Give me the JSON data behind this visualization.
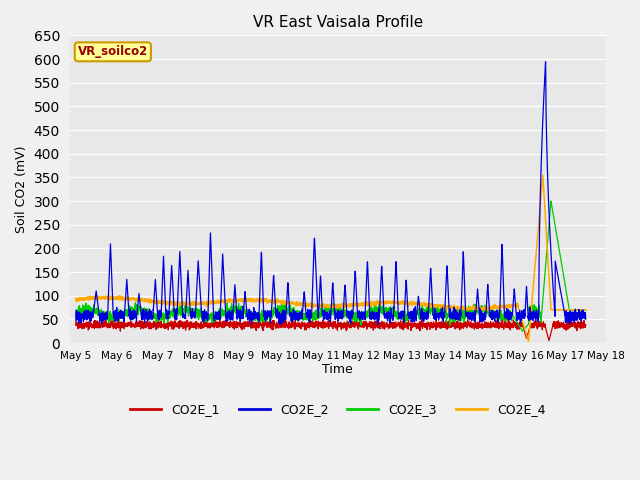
{
  "title": "VR East Vaisala Profile",
  "ylabel": "Soil CO2 (mV)",
  "xlabel": "Time",
  "annotation": "VR_soilco2",
  "ylim": [
    0,
    650
  ],
  "yticks": [
    0,
    50,
    100,
    150,
    200,
    250,
    300,
    350,
    400,
    450,
    500,
    550,
    600,
    650
  ],
  "xlim_days": [
    4.85,
    17.7
  ],
  "xtick_labels": [
    "May 5",
    "May 6",
    "May 7",
    "May 8",
    "May 9",
    "May 10",
    "May 11",
    "May 12",
    "May 13",
    "May 14",
    "May 15",
    "May 16",
    "May 17",
    "May 18"
  ],
  "xtick_positions": [
    5,
    6,
    7,
    8,
    9,
    10,
    11,
    12,
    13,
    14,
    15,
    16,
    17,
    18
  ],
  "line_colors": {
    "CO2E_1": "#cc0000",
    "CO2E_2": "#0000dd",
    "CO2E_3": "#00cc00",
    "CO2E_4": "#ffaa00"
  },
  "legend_labels": [
    "CO2E_1",
    "CO2E_2",
    "CO2E_3",
    "CO2E_4"
  ],
  "fig_bg_color": "#f0f0f0",
  "plot_bg_color": "#e8e8e8",
  "grid_color": "#ffffff",
  "annotation_box_color": "#ffff99",
  "annotation_text_color": "#990000",
  "annotation_border_color": "#cc9900"
}
